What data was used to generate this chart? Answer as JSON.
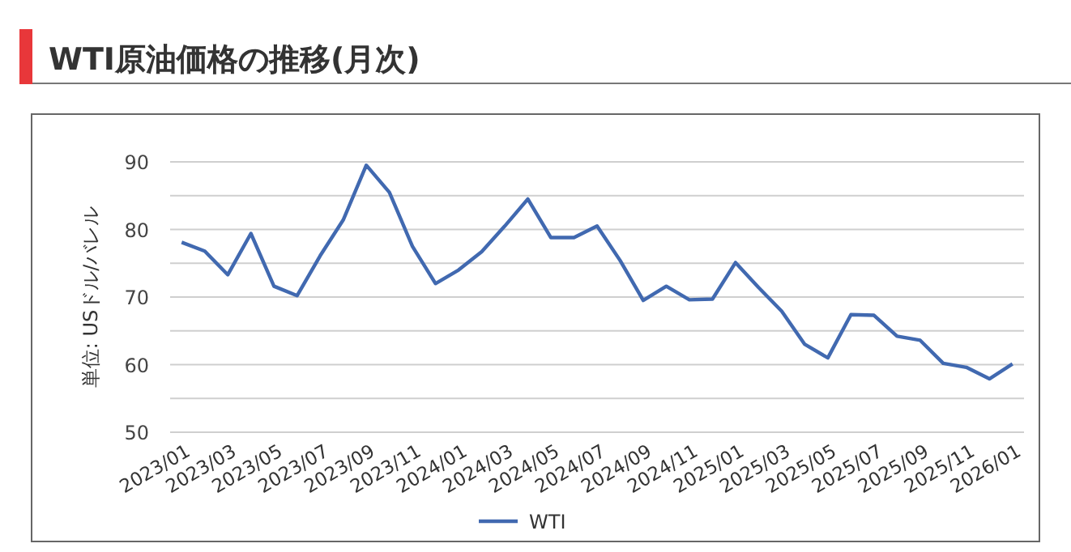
{
  "chart_data": {
    "type": "line",
    "title": "WTI原油価格の推移(月次)",
    "ylabel": "単位: USドル/バレル",
    "categories": [
      "2023/01",
      null,
      "2023/03",
      null,
      "2023/05",
      null,
      "2023/07",
      null,
      "2023/09",
      null,
      "2023/11",
      null,
      "2024/01",
      null,
      "2024/03",
      null,
      "2024/05",
      null,
      "2024/07",
      null,
      "2024/09",
      null,
      "2024/11",
      null,
      "2025/01",
      null,
      "2025/03",
      null,
      "2025/05",
      null,
      "2025/07",
      null,
      "2025/09",
      null,
      "2025/11",
      null,
      "2026/01"
    ],
    "series": [
      {
        "name": "WTI",
        "color": "#4169b0",
        "values": [
          78.1,
          76.8,
          73.3,
          79.4,
          71.6,
          70.2,
          76.1,
          81.4,
          89.5,
          85.5,
          77.5,
          72.0,
          74.0,
          76.7,
          80.5,
          84.5,
          78.8,
          78.8,
          80.5,
          75.4,
          69.5,
          71.6,
          69.6,
          69.7,
          75.1,
          71.4,
          67.9,
          63.0,
          61.0,
          67.4,
          67.3,
          64.2,
          63.6,
          60.2,
          59.6,
          57.9,
          60.1
        ]
      }
    ],
    "ylim": [
      50,
      90
    ],
    "yticks": [
      50,
      {
        "value": 55,
        "label": null
      },
      60,
      {
        "value": 65,
        "label": null
      },
      70,
      {
        "value": 75,
        "label": null
      },
      80,
      {
        "value": 85,
        "label": null
      },
      90
    ],
    "grid": "y",
    "legend": "bottom"
  }
}
